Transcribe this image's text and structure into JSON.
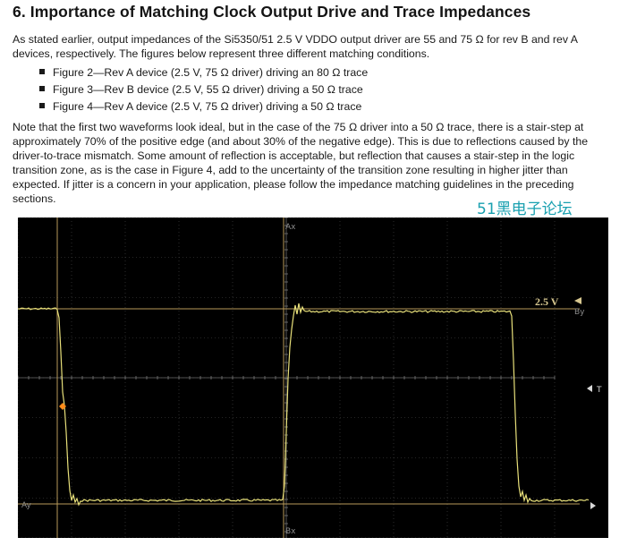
{
  "document": {
    "heading": "6.  Importance of Matching Clock Output Drive and Trace Impedances",
    "intro": "As stated earlier, output impedances of the Si5350/51 2.5 V VDDO output driver are 55 and 75 Ω for rev B and rev A devices, respectively.  The figures below represent three different matching conditions.",
    "bullets": [
      "Figure 2—Rev A device (2.5 V, 75 Ω driver) driving an 80 Ω trace",
      "Figure 3—Rev B device (2.5 V, 55 Ω driver) driving a 50 Ω trace",
      "Figure 4—Rev A device (2.5 V, 75 Ω driver) driving a 50 Ω trace"
    ],
    "note": "Note that the first two waveforms look ideal, but in the case of the 75 Ω driver into a 50 Ω trace, there is a stair-step at approximately 70% of the positive edge (and about 30% of the negative edge).  This is due to reflections caused by the driver-to-trace mismatch.  Some amount of reflection is acceptable, but reflection that causes a stair-step in the logic transition zone, as is the case in Figure 4, add to the uncertainty of the transition zone resulting in higher jitter than expected.  If jitter is a concern in your application, please follow the impedance matching guidelines in the preceding sections."
  },
  "watermark": "51黑电子论坛",
  "scope": {
    "cursor_ax": "Ax",
    "cursor_bx": "Bx",
    "cursor_ay": "Ay",
    "cursor_by": "By",
    "voltage_label": "2.5 V",
    "trigger_label": "T",
    "colors": {
      "background": "#000000",
      "grid": "#5a5a5a",
      "trace": "#e8e07a",
      "cursor": "#b89a5a",
      "marker": "#ff8c1a",
      "voltage_label": "#d8c890"
    }
  }
}
